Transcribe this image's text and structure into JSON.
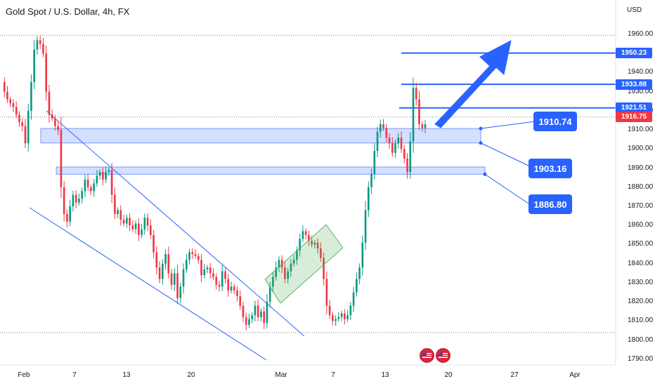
{
  "header": {
    "title": "Gold Spot / U.S. Dollar, 4h, FX",
    "currency": "USD"
  },
  "chart_data": {
    "type": "candlestick",
    "symbol": "XAUUSD",
    "timeframe": "4h",
    "y_axis": {
      "ylim": [
        1787,
        1978
      ],
      "ticks": [
        1960,
        1940,
        1930,
        1920,
        1910,
        1900,
        1890,
        1880,
        1870,
        1860,
        1850,
        1840,
        1830,
        1820,
        1810,
        1800,
        1790
      ],
      "tick_labels": [
        "1960.00",
        "1940.00",
        "1930.00",
        "1920.00",
        "1910.00",
        "1900.00",
        "1890.00",
        "1880.00",
        "1870.00",
        "1860.00",
        "1850.00",
        "1840.00",
        "1830.00",
        "1820.00",
        "1810.00",
        "1800.00",
        "1790.00"
      ]
    },
    "x_axis": {
      "ticks": [
        "Feb",
        "7",
        "13",
        "20",
        "Mar",
        "7",
        "13",
        "20",
        "27",
        "Apr"
      ]
    },
    "price_badges": [
      {
        "label": "1950.23",
        "value": 1950.23,
        "color": "#2962ff"
      },
      {
        "label": "1933.88",
        "value": 1933.88,
        "color": "#2962ff"
      },
      {
        "label": "1921.51",
        "value": 1921.51,
        "color": "#2962ff"
      },
      {
        "label": "1916.75",
        "value": 1916.75,
        "color": "#f23645"
      }
    ],
    "target_lines": [
      1950.23,
      1933.88,
      1921.51
    ],
    "dotted_levels": [
      1959.5,
      1916.75,
      1804
    ],
    "support_zones": [
      {
        "from": 1903.16,
        "to": 1910.74
      },
      {
        "from": 1886.8,
        "to": 1890.6
      }
    ],
    "callouts": [
      {
        "label": "1910.74",
        "value": 1910.74
      },
      {
        "label": "1903.16",
        "value": 1903.16
      },
      {
        "label": "1886.80",
        "value": 1886.8
      }
    ],
    "colors": {
      "up": "#089981",
      "down": "#f23645",
      "line": "#2962ff",
      "zone": "#2962ff",
      "channel": "#4caf50"
    },
    "close_path": [
      1935,
      1930,
      1926,
      1924,
      1922,
      1918,
      1914,
      1912,
      1903,
      1920,
      1935,
      1952,
      1957,
      1955,
      1950,
      1930,
      1918,
      1916,
      1912,
      1910,
      1880,
      1866,
      1862,
      1870,
      1876,
      1872,
      1874,
      1878,
      1884,
      1880,
      1878,
      1882,
      1886,
      1888,
      1884,
      1888,
      1889,
      1876,
      1866,
      1868,
      1863,
      1861,
      1864,
      1860,
      1858,
      1861,
      1855,
      1858,
      1864,
      1860,
      1855,
      1846,
      1838,
      1832,
      1840,
      1845,
      1835,
      1829,
      1835,
      1822,
      1828,
      1837,
      1842,
      1846,
      1845,
      1844,
      1842,
      1834,
      1837,
      1838,
      1835,
      1833,
      1829,
      1828,
      1836,
      1832,
      1826,
      1828,
      1826,
      1823,
      1818,
      1812,
      1808,
      1811,
      1813,
      1818,
      1812,
      1815,
      1809,
      1820,
      1828,
      1833,
      1838,
      1842,
      1838,
      1832,
      1836,
      1840,
      1842,
      1847,
      1853,
      1857,
      1855,
      1852,
      1850,
      1851,
      1848,
      1843,
      1832,
      1818,
      1813,
      1810,
      1811,
      1812,
      1814,
      1811,
      1813,
      1818,
      1825,
      1832,
      1838,
      1851,
      1868,
      1880,
      1887,
      1899,
      1909,
      1913,
      1911,
      1906,
      1903,
      1898,
      1903,
      1906,
      1900,
      1895,
      1888,
      1904,
      1932,
      1926,
      1913,
      1911,
      1913
    ]
  },
  "drawings": {
    "arrow": "up-arrow",
    "currency_flags": [
      "us-flag",
      "us-flag"
    ]
  }
}
